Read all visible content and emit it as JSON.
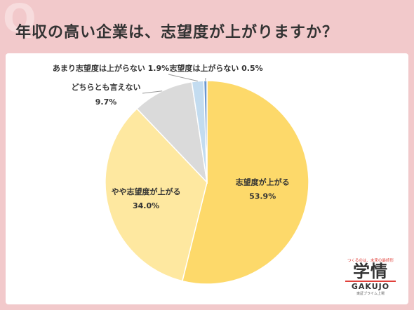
{
  "header": {
    "badge": "Q",
    "title": "年収の高い企業は、志望度が上がりますか？"
  },
  "chart_data": {
    "type": "pie",
    "title": "年収の高い企業は、志望度が上がりますか？",
    "slices": [
      {
        "label": "志望度が上がる",
        "value": 53.9,
        "value_label": "53.9%",
        "color": "#fdd96a"
      },
      {
        "label": "やや志望度が上がる",
        "value": 34.0,
        "value_label": "34.0%",
        "color": "#fee8a0"
      },
      {
        "label": "どちらとも言えない",
        "value": 9.7,
        "value_label": "9.7%",
        "color": "#dadada"
      },
      {
        "label": "あまり志望度は上がらない",
        "value": 1.9,
        "value_label": "1.9%",
        "color": "#c3dcf0"
      },
      {
        "label": "志望度は上がらない",
        "value": 0.5,
        "value_label": "0.5%",
        "color": "#6b98d0"
      }
    ],
    "start": "12 o'clock",
    "direction": "clockwise"
  },
  "logo": {
    "tagline": "つくるのは、未来の最終形",
    "main": "学情",
    "sub": "GAKUJO",
    "footer": "東証プライム上場"
  }
}
